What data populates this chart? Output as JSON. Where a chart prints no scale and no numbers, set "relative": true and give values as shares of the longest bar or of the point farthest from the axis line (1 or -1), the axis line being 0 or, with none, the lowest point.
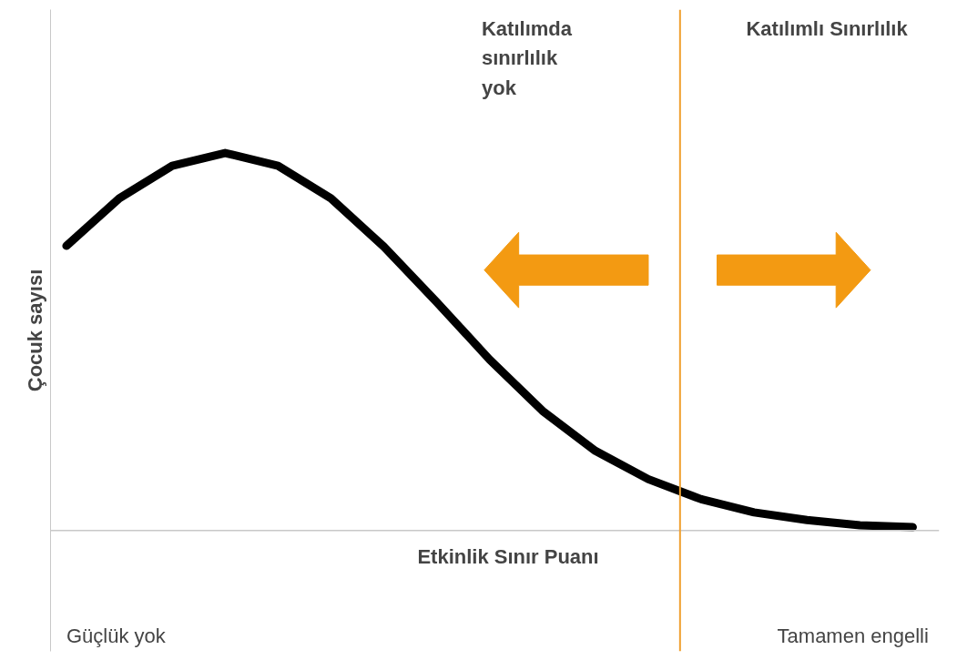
{
  "chart_data": {
    "type": "line",
    "relative": true,
    "xlabel": "Etkinlik Sınır Puanı",
    "ylabel": "Çocuk sayısı",
    "categories": [
      null,
      null,
      null,
      null,
      null,
      null,
      null,
      null,
      null,
      null,
      null,
      null,
      null,
      null,
      null,
      null,
      null
    ],
    "series": [
      {
        "color": "#000000",
        "values": [
          0.754,
          0.88,
          0.966,
          1,
          0.966,
          0.88,
          0.752,
          0.605,
          0.453,
          0.317,
          0.211,
          0.136,
          0.083,
          0.048,
          0.028,
          0.014,
          0.009
        ]
      }
    ],
    "annotations": [
      "Katılımda sınırlılık yok",
      "Katılımlı Sınırlılık",
      "Güçlük yok",
      "Tamamen engelli"
    ],
    "grid": false,
    "marker": "none",
    "line_style": "solid"
  }
}
